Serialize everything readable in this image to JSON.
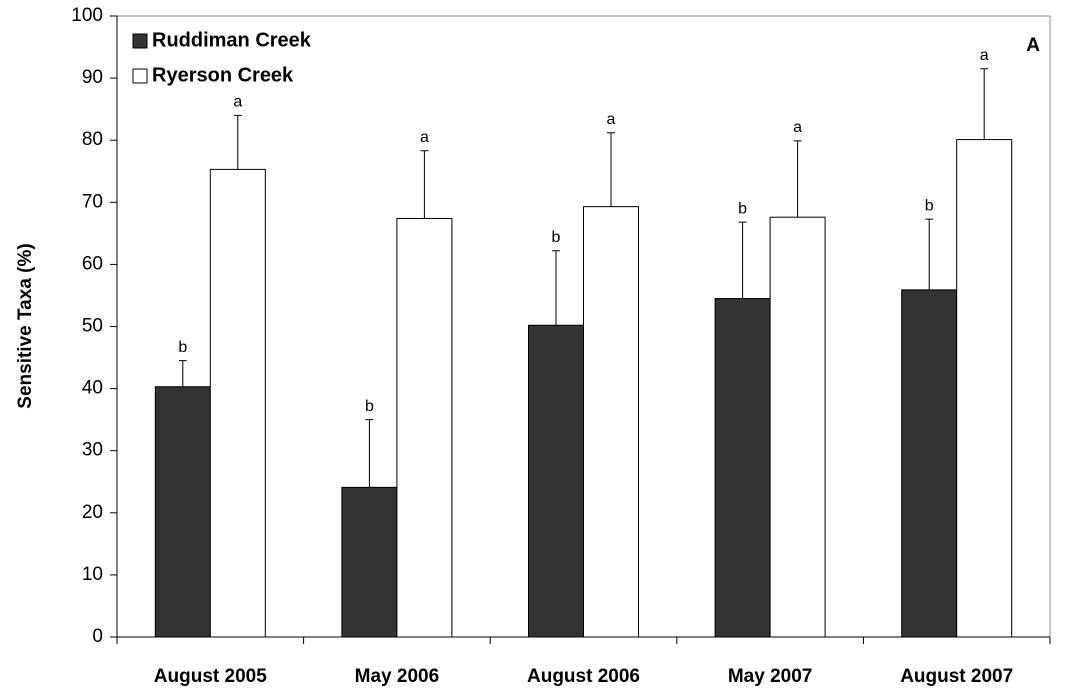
{
  "chart_data": {
    "type": "bar",
    "y_label": "Sensitive Taxa (%)",
    "annotation": "A",
    "categories": [
      "August 2005",
      "May 2006",
      "August 2006",
      "May 2007",
      "August 2007"
    ],
    "series": [
      {
        "name": "Ruddiman Creek",
        "color": "#333333",
        "values": [
          40.3,
          24.1,
          50.2,
          54.5,
          55.9
        ],
        "errors": [
          4.2,
          10.9,
          12.0,
          12.3,
          11.4
        ],
        "letters": [
          "b",
          "b",
          "b",
          "b",
          "b"
        ]
      },
      {
        "name": "Ryerson Creek",
        "color": "#ffffff",
        "values": [
          75.3,
          67.4,
          69.3,
          67.6,
          80.1
        ],
        "errors": [
          8.7,
          10.9,
          11.9,
          12.3,
          11.4
        ],
        "letters": [
          "a",
          "a",
          "a",
          "a",
          "a"
        ]
      }
    ],
    "ylim": [
      0,
      100
    ],
    "yticks": [
      0,
      10,
      20,
      30,
      40,
      50,
      60,
      70,
      80,
      90,
      100
    ],
    "grid": false,
    "legend": "top-left"
  }
}
